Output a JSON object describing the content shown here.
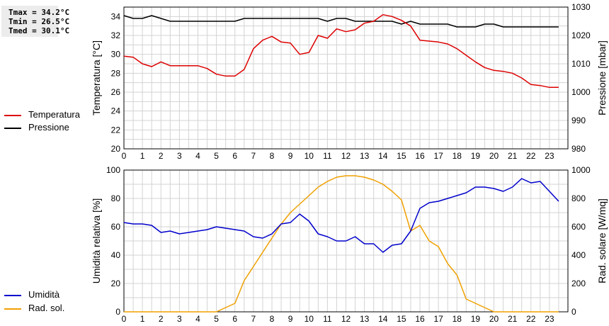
{
  "stats": {
    "tmax": "Tmax = 34.2°C",
    "tmin": "Tmin = 26.5°C",
    "tmed": "Tmed = 30.1°C"
  },
  "colors": {
    "temperature": "#dd0000",
    "pressure": "#000000",
    "humidity": "#0000cc",
    "solar": "#f0a000",
    "grid": "#d3d3d3"
  },
  "legend": {
    "top": [
      {
        "label": "Temperatura",
        "color": "#dd0000"
      },
      {
        "label": "Pressione",
        "color": "#000000"
      }
    ],
    "bottom": [
      {
        "label": "Umidità",
        "color": "#0000cc"
      },
      {
        "label": "Rad. sol.",
        "color": "#f0a000"
      }
    ]
  },
  "chart_data": [
    {
      "type": "line",
      "x_ticks": [
        0,
        1,
        2,
        3,
        4,
        5,
        6,
        7,
        8,
        9,
        10,
        11,
        12,
        13,
        14,
        15,
        16,
        17,
        18,
        19,
        20,
        21,
        22,
        23
      ],
      "xlim": [
        0,
        24
      ],
      "grid": true,
      "ylabel": "Temperatura [°C]",
      "ylim": [
        20,
        35
      ],
      "y_ticks": [
        20,
        22,
        24,
        26,
        28,
        30,
        32,
        34
      ],
      "y2label": "Pressione [mbar]",
      "y2lim": [
        980,
        1030
      ],
      "y2_ticks": [
        980,
        990,
        1000,
        1010,
        1020,
        1030
      ],
      "series": [
        {
          "name": "Temperatura",
          "axis": "left",
          "color": "#dd0000",
          "x": [
            0,
            0.5,
            1,
            1.5,
            2,
            2.5,
            3,
            3.5,
            4,
            4.5,
            5,
            5.5,
            6,
            6.5,
            7,
            7.5,
            8,
            8.5,
            9,
            9.5,
            10,
            10.5,
            11,
            11.5,
            12,
            12.5,
            13,
            13.5,
            14,
            14.5,
            15,
            15.5,
            16,
            16.5,
            17,
            17.5,
            18,
            18.5,
            19,
            19.5,
            20,
            20.5,
            21,
            21.5,
            22,
            22.5,
            23,
            23.5
          ],
          "values": [
            29.8,
            29.7,
            29.0,
            28.7,
            29.2,
            28.8,
            28.8,
            28.8,
            28.8,
            28.5,
            27.9,
            27.7,
            27.7,
            28.4,
            30.6,
            31.5,
            31.9,
            31.3,
            31.2,
            30.0,
            30.2,
            32.0,
            31.7,
            32.7,
            32.4,
            32.6,
            33.3,
            33.5,
            34.2,
            34.0,
            33.6,
            33.0,
            31.5,
            31.4,
            31.3,
            31.1,
            30.6,
            29.9,
            29.2,
            28.6,
            28.3,
            28.2,
            28.0,
            27.5,
            26.8,
            26.7,
            26.5,
            26.5
          ]
        },
        {
          "name": "Pressione",
          "axis": "right",
          "color": "#000000",
          "x": [
            0,
            0.5,
            1,
            1.5,
            2,
            2.5,
            3,
            3.5,
            4,
            4.5,
            5,
            5.5,
            6,
            6.5,
            7,
            7.5,
            8,
            8.5,
            9,
            9.5,
            10,
            10.5,
            11,
            11.5,
            12,
            12.5,
            13,
            13.5,
            14,
            14.5,
            15,
            15.5,
            16,
            16.5,
            17,
            17.5,
            18,
            18.5,
            19,
            19.5,
            20,
            20.5,
            21,
            21.5,
            22,
            22.5,
            23,
            23.5
          ],
          "values": [
            1027,
            1026,
            1026,
            1027,
            1026,
            1025,
            1025,
            1025,
            1025,
            1025,
            1025,
            1025,
            1025,
            1026,
            1026,
            1026,
            1026,
            1026,
            1026,
            1026,
            1026,
            1026,
            1025,
            1026,
            1026,
            1025,
            1025,
            1025,
            1025,
            1025,
            1024,
            1025,
            1024,
            1024,
            1024,
            1024,
            1023,
            1023,
            1023,
            1024,
            1024,
            1023,
            1023,
            1023,
            1023,
            1023,
            1023,
            1023
          ]
        }
      ]
    },
    {
      "type": "line",
      "x_ticks": [
        0,
        1,
        2,
        3,
        4,
        5,
        6,
        7,
        8,
        9,
        10,
        11,
        12,
        13,
        14,
        15,
        16,
        17,
        18,
        19,
        20,
        21,
        22,
        23
      ],
      "xlim": [
        0,
        24
      ],
      "grid": true,
      "ylabel": "Umidità relativa [%]",
      "ylim": [
        0,
        100
      ],
      "y_ticks": [
        0,
        20,
        40,
        60,
        80,
        100
      ],
      "y2label": "Rad. solare [W/mq]",
      "y2lim": [
        0,
        1000
      ],
      "y2_ticks": [
        0,
        200,
        400,
        600,
        800,
        1000
      ],
      "series": [
        {
          "name": "Umidità",
          "axis": "left",
          "color": "#0000cc",
          "x": [
            0,
            0.5,
            1,
            1.5,
            2,
            2.5,
            3,
            3.5,
            4,
            4.5,
            5,
            5.5,
            6,
            6.5,
            7,
            7.5,
            8,
            8.5,
            9,
            9.5,
            10,
            10.5,
            11,
            11.5,
            12,
            12.5,
            13,
            13.5,
            14,
            14.5,
            15,
            15.5,
            16,
            16.5,
            17,
            17.5,
            18,
            18.5,
            19,
            19.5,
            20,
            20.5,
            21,
            21.5,
            22,
            22.5,
            23,
            23.5
          ],
          "values": [
            63,
            62,
            62,
            61,
            56,
            57,
            55,
            56,
            57,
            58,
            60,
            59,
            58,
            57,
            53,
            52,
            55,
            62,
            63,
            69,
            64,
            55,
            53,
            50,
            50,
            53,
            48,
            48,
            42,
            47,
            48,
            57,
            73,
            77,
            78,
            80,
            82,
            84,
            88,
            88,
            87,
            85,
            88,
            94,
            91,
            92,
            85,
            78
          ]
        },
        {
          "name": "Rad. sol.",
          "axis": "right",
          "color": "#f0a000",
          "x": [
            0,
            0.5,
            1,
            1.5,
            2,
            2.5,
            3,
            3.5,
            4,
            4.5,
            5,
            5.5,
            6,
            6.5,
            7,
            7.5,
            8,
            8.5,
            9,
            9.5,
            10,
            10.5,
            11,
            11.5,
            12,
            12.5,
            13,
            13.5,
            14,
            14.5,
            15,
            15.5,
            16,
            16.5,
            17,
            17.5,
            18,
            18.5,
            19,
            19.5,
            20,
            20.5,
            21,
            21.5,
            22,
            22.5,
            23,
            23.5
          ],
          "values": [
            0,
            0,
            0,
            0,
            0,
            0,
            0,
            0,
            0,
            0,
            0,
            30,
            60,
            220,
            320,
            420,
            520,
            620,
            700,
            760,
            820,
            880,
            920,
            950,
            960,
            960,
            950,
            930,
            900,
            850,
            790,
            570,
            610,
            500,
            460,
            340,
            260,
            90,
            60,
            30,
            0,
            0,
            0,
            0,
            0,
            0,
            0,
            0
          ]
        }
      ]
    }
  ]
}
